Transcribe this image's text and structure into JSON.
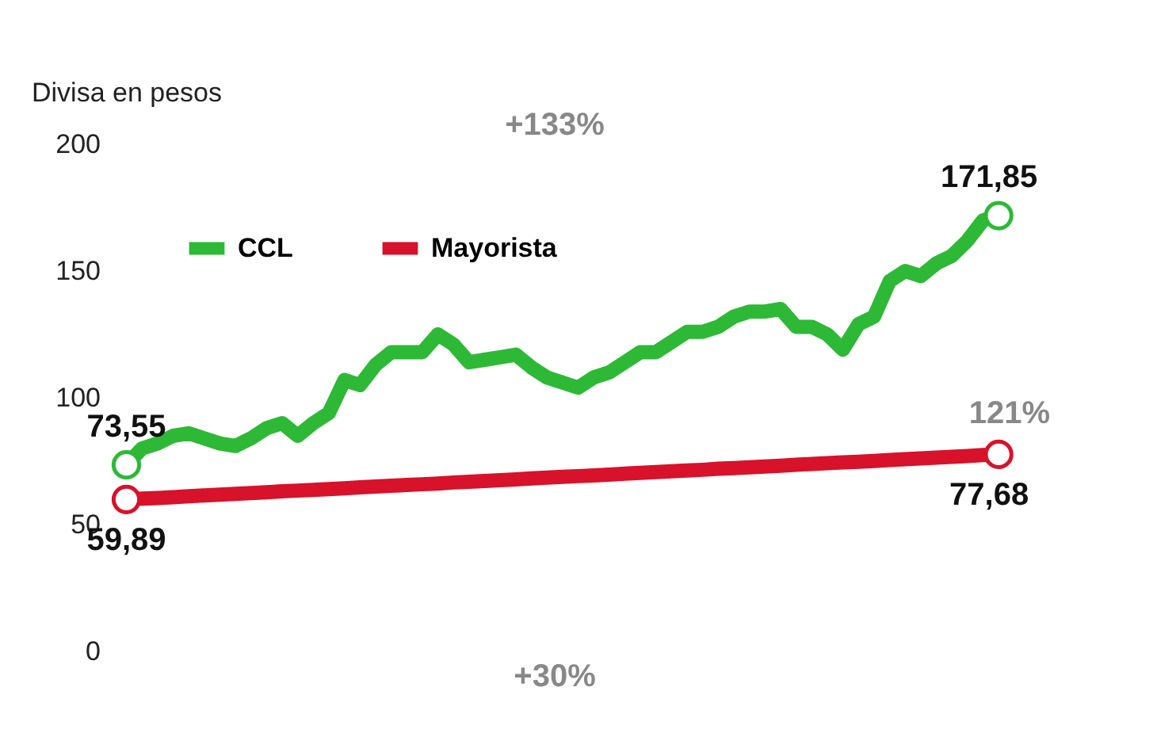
{
  "chart_data": {
    "type": "line",
    "ylabel": "Divisa en pesos",
    "categories": [
      null,
      null,
      null,
      null,
      null,
      null,
      null,
      null,
      null,
      null,
      null,
      null,
      null,
      null,
      null,
      null,
      null,
      null,
      null,
      null,
      null,
      null,
      null,
      null,
      null,
      null,
      null,
      null,
      null,
      null,
      null,
      null,
      null,
      null,
      null,
      null,
      null,
      null,
      null,
      null,
      null,
      null,
      null,
      null,
      null,
      null,
      null,
      null,
      null,
      null,
      null,
      null,
      null,
      null,
      null,
      null,
      null
    ],
    "series": [
      {
        "name": "CCL",
        "color": "#2db935",
        "values": [
          73.55,
          80,
          82,
          85,
          86,
          84,
          82,
          81,
          84,
          88,
          90,
          85,
          90,
          94,
          107,
          105,
          113,
          118,
          118,
          118,
          125,
          121,
          114,
          115,
          116,
          117,
          112,
          108,
          106,
          104,
          108,
          110,
          114,
          118,
          118,
          122,
          126,
          126,
          128,
          132,
          134,
          134,
          135,
          128,
          128,
          125,
          119,
          129,
          132,
          146,
          150,
          148,
          153,
          156,
          162,
          170,
          171.85
        ],
        "value_labels": [
          "73,55",
          null,
          null,
          null,
          null,
          null,
          null,
          null,
          null,
          null,
          null,
          null,
          null,
          null,
          null,
          null,
          null,
          null,
          null,
          null,
          null,
          null,
          null,
          null,
          null,
          null,
          null,
          null,
          null,
          null,
          null,
          null,
          null,
          null,
          null,
          null,
          null,
          null,
          null,
          null,
          null,
          null,
          null,
          null,
          null,
          null,
          null,
          null,
          null,
          null,
          null,
          null,
          null,
          null,
          null,
          null,
          "171,85"
        ]
      },
      {
        "name": "Mayorista",
        "color": "#d7122a",
        "values": [
          59.89,
          60.2,
          60.5,
          60.8,
          61.2,
          61.5,
          61.8,
          62.1,
          62.4,
          62.7,
          63.1,
          63.4,
          63.7,
          64.0,
          64.3,
          64.7,
          65.0,
          65.3,
          65.6,
          65.9,
          66.2,
          66.6,
          66.9,
          67.2,
          67.5,
          67.8,
          68.2,
          68.5,
          68.8,
          69.1,
          69.4,
          69.7,
          70.1,
          70.4,
          70.7,
          71.0,
          71.3,
          71.6,
          72.0,
          72.3,
          72.6,
          72.9,
          73.2,
          73.6,
          73.9,
          74.2,
          74.5,
          74.8,
          75.1,
          75.5,
          75.8,
          76.1,
          76.4,
          76.7,
          77.0,
          77.4,
          77.68
        ],
        "value_labels": [
          "59,89",
          null,
          null,
          null,
          null,
          null,
          null,
          null,
          null,
          null,
          null,
          null,
          null,
          null,
          null,
          null,
          null,
          null,
          null,
          null,
          null,
          null,
          null,
          null,
          null,
          null,
          null,
          null,
          null,
          null,
          null,
          null,
          null,
          null,
          null,
          null,
          null,
          null,
          null,
          null,
          null,
          null,
          null,
          null,
          null,
          null,
          null,
          null,
          null,
          null,
          null,
          null,
          null,
          null,
          null,
          null,
          "77,68"
        ]
      }
    ],
    "ylim": [
      0,
      200
    ],
    "yticks": [
      0,
      50,
      100,
      150,
      200
    ],
    "grid": false,
    "legend": "top left",
    "line_style": "solid",
    "annotations": [
      "+133%",
      "121%",
      "+30%"
    ]
  }
}
